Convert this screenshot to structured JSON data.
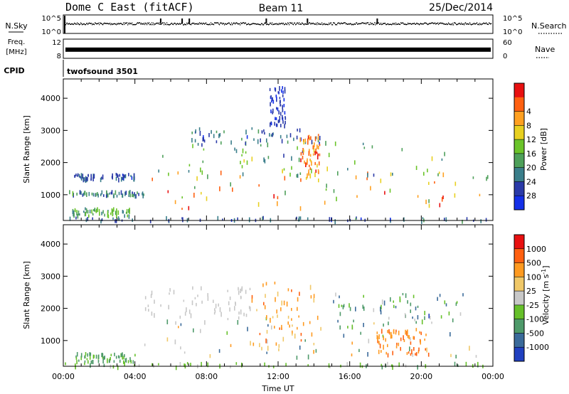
{
  "header": {
    "station": "Dome C East (fitACF)",
    "beam": "Beam 11",
    "date": "25/Dec/2014"
  },
  "chart_data": [
    {
      "type": "line",
      "panel": "nsky",
      "label": "N.Sky",
      "right_label": "N.Search",
      "yticks_left": [
        "10^5",
        "10^0"
      ],
      "yticks_right": [
        "10^5",
        "10^0"
      ],
      "description_values": {
        "baseline_fraction": 0.55,
        "spike_hours": [
          5.4,
          6.6,
          7.0,
          11.3,
          13.6,
          17.5
        ]
      }
    },
    {
      "type": "line",
      "panel": "freq",
      "label_line1": "Freq.",
      "label_line2": "[MHz]",
      "right_label": "Nave",
      "yticks_left": [
        "12",
        "8"
      ],
      "yticks_right": [
        "60",
        "0"
      ],
      "band_fraction": 0.45
    },
    {
      "type": "table",
      "panel": "cpid",
      "label": "CPID",
      "value": "twofsound 3501"
    },
    {
      "type": "heatmap",
      "panel": "power",
      "ylabel": "Slant Range [km]",
      "ylim": [
        200,
        4600
      ],
      "yticks": [
        1000,
        2000,
        3000,
        4000
      ],
      "xlim": [
        0,
        24
      ],
      "colorbar_label": "Power [dB]",
      "colorbar_ticks": [
        "4",
        "8",
        "12",
        "16",
        "20",
        "24",
        "28"
      ],
      "colors": [
        "#1430e8",
        "#2a3aa8",
        "#3a7e8a",
        "#4ea05a",
        "#6bc42a",
        "#e8d020",
        "#ffa020",
        "#ff6010",
        "#e81010"
      ],
      "bands": [
        {
          "h0": 0.0,
          "h1": 24,
          "r0": 220,
          "r1": 340,
          "lvl": [
            0.1,
            0.35
          ]
        },
        {
          "h0": 0.5,
          "h1": 3.8,
          "r0": 380,
          "r1": 620,
          "lvl": [
            0.25,
            0.55
          ]
        },
        {
          "h0": 0.3,
          "h1": 4.5,
          "r0": 1000,
          "r1": 1150,
          "lvl": [
            0.15,
            0.45
          ]
        },
        {
          "h0": 0.5,
          "h1": 4.0,
          "r0": 1500,
          "r1": 1700,
          "lvl": [
            0.1,
            0.3
          ]
        },
        {
          "h0": 4.5,
          "h1": 23.9,
          "r0": 550,
          "r1": 1800,
          "lvl": [
            0.35,
            0.95
          ]
        },
        {
          "h0": 5.2,
          "h1": 21.5,
          "r0": 1600,
          "r1": 2700,
          "lvl": [
            0.2,
            0.6
          ]
        },
        {
          "h0": 7.0,
          "h1": 14.5,
          "r0": 2600,
          "r1": 3100,
          "lvl": [
            0.1,
            0.4
          ]
        },
        {
          "h0": 13.2,
          "h1": 14.3,
          "r0": 1500,
          "r1": 2900,
          "lvl": [
            0.6,
            0.95
          ]
        },
        {
          "h0": 11.5,
          "h1": 12.4,
          "r0": 3200,
          "r1": 4400,
          "lvl": [
            0.05,
            0.2
          ]
        }
      ]
    },
    {
      "type": "heatmap",
      "panel": "velocity",
      "ylabel": "Slant Range [km]",
      "ylim": [
        200,
        4600
      ],
      "yticks": [
        1000,
        2000,
        3000,
        4000
      ],
      "xlim": [
        0,
        24
      ],
      "xticks": [
        "00:00",
        "04:00",
        "08:00",
        "12:00",
        "16:00",
        "20:00",
        "00:00"
      ],
      "xlabel": "Time UT",
      "colorbar_label": "Velocity [m s^-1]",
      "colorbar_ticks": [
        "1000",
        "500",
        "100",
        "25",
        "-25",
        "-100",
        "-500",
        "-1000"
      ],
      "colors": [
        "#2040c0",
        "#3a6a9a",
        "#4e9a6a",
        "#66c02a",
        "#c8c8c8",
        "#f0c868",
        "#ff9a20",
        "#ff6010",
        "#e81010"
      ],
      "bands": [
        {
          "h0": 0.0,
          "h1": 24,
          "r0": 220,
          "r1": 340,
          "lvl": [
            0.3,
            0.5
          ]
        },
        {
          "h0": 0.5,
          "h1": 4.0,
          "r0": 380,
          "r1": 650,
          "lvl": [
            0.25,
            0.4
          ]
        },
        {
          "h0": 4.5,
          "h1": 10.5,
          "r0": 1700,
          "r1": 2700,
          "lvl": [
            0.45,
            0.55
          ]
        },
        {
          "h0": 4.5,
          "h1": 23.5,
          "r0": 500,
          "r1": 1800,
          "lvl": [
            0.1,
            0.75
          ]
        },
        {
          "h0": 10.5,
          "h1": 14.2,
          "r0": 700,
          "r1": 2900,
          "lvl": [
            0.6,
            0.8
          ]
        },
        {
          "h0": 17.5,
          "h1": 20.5,
          "r0": 600,
          "r1": 1400,
          "lvl": [
            0.7,
            0.85
          ]
        },
        {
          "h0": 15.0,
          "h1": 22.5,
          "r0": 1500,
          "r1": 2500,
          "lvl": [
            0.1,
            0.5
          ]
        }
      ]
    }
  ]
}
